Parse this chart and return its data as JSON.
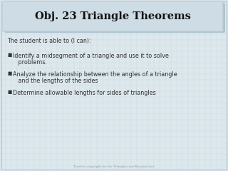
{
  "title": "Obj. 23 Triangle Theorems",
  "subtitle": "The student is able to (I can):",
  "bullet1_line1": "Identify a midsegment of a triangle and use it to solve",
  "bullet1_line2": "   problems.",
  "bullet2_line1": "Analyze the relationship between the angles of a triangle",
  "bullet2_line2": "   and the lengths of the sides",
  "bullet3": "Determine allowable lengths for sides of triangles",
  "footer": "Teacher copyright for the Triangles and Beyond unit",
  "bg_outer": "#e8ecee",
  "bg_color": "#dde8ed",
  "grid_color": "#c8d8e0",
  "title_box_color": "#cddce5",
  "title_box_shadow": "#b0c4ce",
  "title_box_edge": "#b8ccd6",
  "title_color": "#111111",
  "body_color": "#333333",
  "footer_color": "#999999",
  "title_fontsize": 10.5,
  "body_fontsize": 5.8,
  "footer_fontsize": 3.2
}
